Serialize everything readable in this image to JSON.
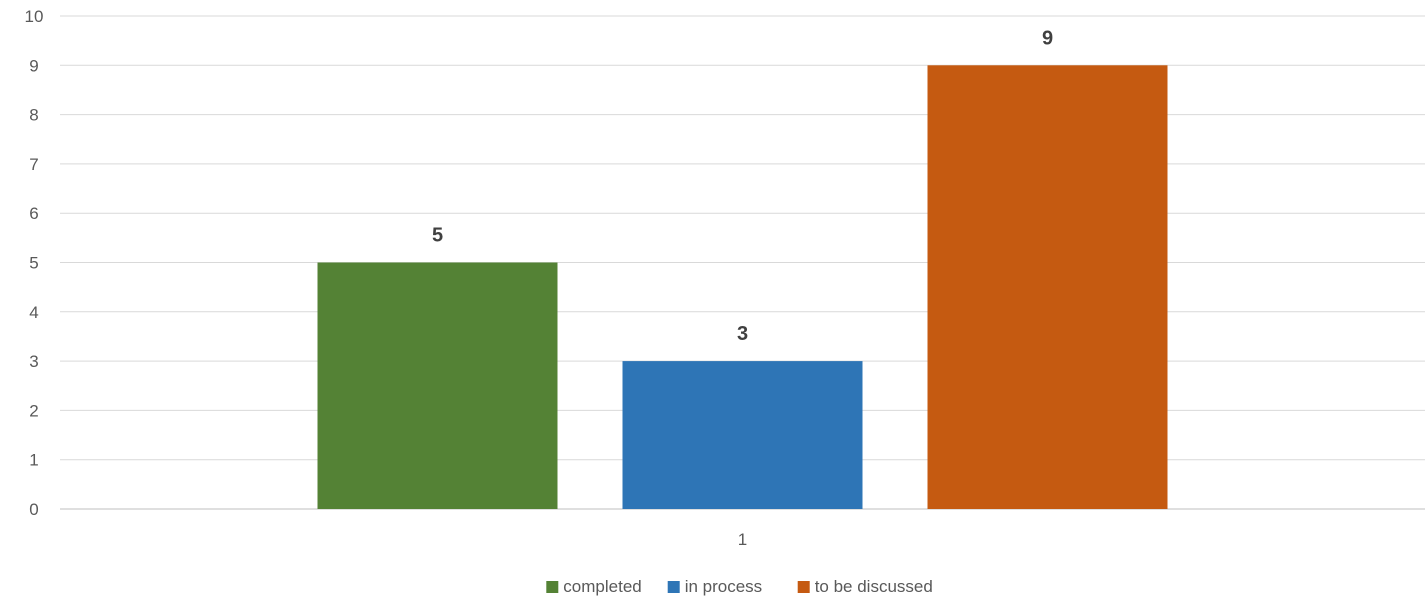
{
  "chart_data": {
    "type": "bar",
    "categories": [
      "1"
    ],
    "series": [
      {
        "name": "completed",
        "values": [
          5
        ],
        "color": "#548235"
      },
      {
        "name": "in process",
        "values": [
          3
        ],
        "color": "#2E75B6"
      },
      {
        "name": "to be discussed",
        "values": [
          9
        ],
        "color": "#C55A11"
      }
    ],
    "title": "",
    "xlabel": "",
    "ylabel": "",
    "ylim": [
      0,
      10
    ],
    "yticks": [
      "0",
      "1",
      "2",
      "3",
      "4",
      "5",
      "6",
      "7",
      "8",
      "9",
      "10"
    ],
    "grid": true,
    "legend": "bottom",
    "data_labels": true
  }
}
